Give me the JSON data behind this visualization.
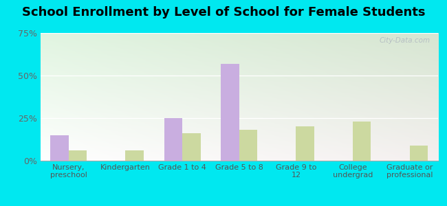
{
  "title": "School Enrollment by Level of School for Female Students",
  "categories": [
    "Nursery,\npreschool",
    "Kindergarten",
    "Grade 1 to 4",
    "Grade 5 to 8",
    "Grade 9 to\n12",
    "College\nundergrad",
    "Graduate or\nprofessional"
  ],
  "scottsburg": [
    15,
    0,
    25,
    57,
    0,
    0,
    0
  ],
  "virginia": [
    6,
    6,
    16,
    18,
    20,
    23,
    9
  ],
  "scottsburg_color": "#c9aee0",
  "virginia_color": "#ccd9a0",
  "background_outer": "#00e8f0",
  "title_fontsize": 13,
  "tick_label_fontsize": 8,
  "legend_fontsize": 10,
  "ylim": [
    0,
    75
  ],
  "yticks": [
    0,
    25,
    50,
    75
  ],
  "ytick_labels": [
    "0%",
    "25%",
    "50%",
    "75%"
  ],
  "bar_width": 0.32,
  "watermark": "City-Data.com"
}
